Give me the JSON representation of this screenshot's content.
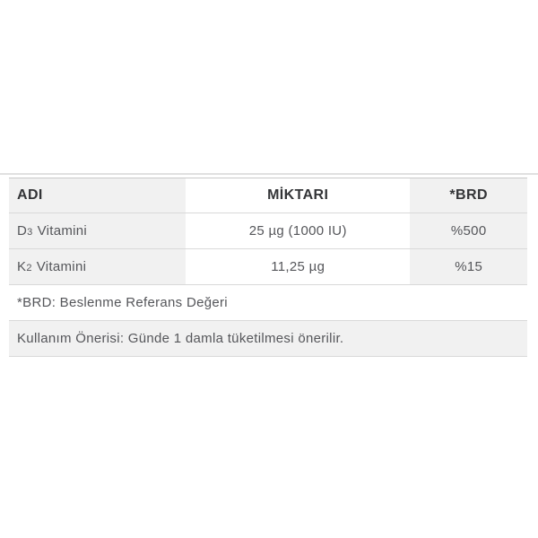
{
  "table": {
    "columns": [
      {
        "label": "ADI"
      },
      {
        "label": "MİKTARI"
      },
      {
        "label": "*BRD"
      }
    ],
    "rows": [
      {
        "name_base": "D",
        "name_sub": "3",
        "name_rest": "Vitamini",
        "amount": "25 µg (1000 IU)",
        "brd": "%500"
      },
      {
        "name_base": "K",
        "name_sub": "2",
        "name_rest": "Vitamini",
        "amount": "11,25 µg",
        "brd": "%15"
      }
    ],
    "footnote": "*BRD: Beslenme Referans Değeri",
    "usage_note": "Kullanım Önerisi: Günde 1 damla tüketilmesi önerilir.",
    "colors": {
      "stripe_bg": "#f1f1f1",
      "row_border": "#d9d9d9",
      "header_text": "#333437",
      "body_text": "#55565a"
    }
  }
}
